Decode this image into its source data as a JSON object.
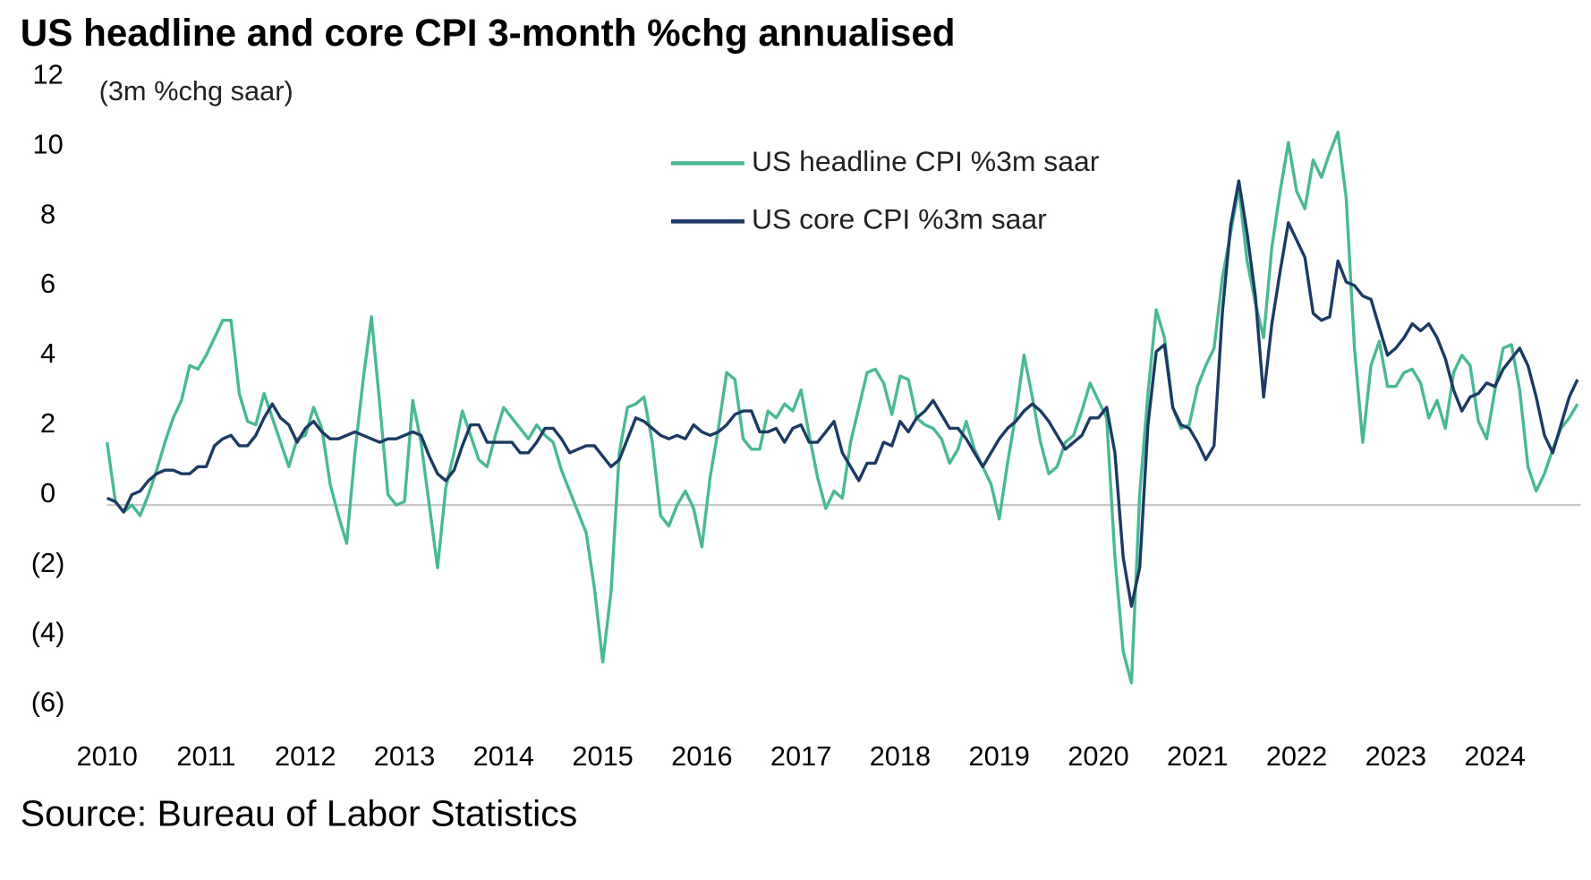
{
  "chart_data": {
    "type": "line",
    "title": "US headline and core CPI 3-month %chg annualised",
    "y_label": "(3m %chg saar)",
    "source": "Source: Bureau of Labor Statistics",
    "categories": [
      "2010",
      null,
      null,
      null,
      null,
      null,
      null,
      null,
      null,
      null,
      null,
      null,
      "2011",
      null,
      null,
      null,
      null,
      null,
      null,
      null,
      null,
      null,
      null,
      null,
      "2012",
      null,
      null,
      null,
      null,
      null,
      null,
      null,
      null,
      null,
      null,
      null,
      "2013",
      null,
      null,
      null,
      null,
      null,
      null,
      null,
      null,
      null,
      null,
      null,
      "2014",
      null,
      null,
      null,
      null,
      null,
      null,
      null,
      null,
      null,
      null,
      null,
      "2015",
      null,
      null,
      null,
      null,
      null,
      null,
      null,
      null,
      null,
      null,
      null,
      "2016",
      null,
      null,
      null,
      null,
      null,
      null,
      null,
      null,
      null,
      null,
      null,
      "2017",
      null,
      null,
      null,
      null,
      null,
      null,
      null,
      null,
      null,
      null,
      null,
      "2018",
      null,
      null,
      null,
      null,
      null,
      null,
      null,
      null,
      null,
      null,
      null,
      "2019",
      null,
      null,
      null,
      null,
      null,
      null,
      null,
      null,
      null,
      null,
      null,
      "2020",
      null,
      null,
      null,
      null,
      null,
      null,
      null,
      null,
      null,
      null,
      null,
      "2021",
      null,
      null,
      null,
      null,
      null,
      null,
      null,
      null,
      null,
      null,
      null,
      "2022",
      null,
      null,
      null,
      null,
      null,
      null,
      null,
      null,
      null,
      null,
      null,
      "2023",
      null,
      null,
      null,
      null,
      null,
      null,
      null,
      null,
      null,
      null,
      null,
      "2024",
      null,
      null,
      null,
      null,
      null,
      null,
      null,
      null,
      null,
      null
    ],
    "series": [
      {
        "name": "US headline CPI %3m saar",
        "color": "#4bb895",
        "values": [
          1.8,
          0.1,
          -0.2,
          0.0,
          -0.3,
          0.3,
          1.0,
          1.8,
          2.5,
          3.0,
          4.0,
          3.9,
          4.3,
          4.8,
          5.3,
          5.3,
          3.2,
          2.4,
          2.3,
          3.2,
          2.5,
          1.8,
          1.1,
          1.9,
          2.0,
          2.8,
          2.2,
          0.6,
          -0.3,
          -1.1,
          1.5,
          3.6,
          5.4,
          2.9,
          0.3,
          0.0,
          0.1,
          3.0,
          1.8,
          0.0,
          -1.8,
          0.5,
          1.5,
          2.7,
          2.0,
          1.3,
          1.1,
          2.0,
          2.8,
          2.5,
          2.2,
          1.9,
          2.3,
          2.0,
          1.8,
          1.0,
          0.4,
          -0.2,
          -0.8,
          -2.4,
          -4.5,
          -2.5,
          1.5,
          2.8,
          2.9,
          3.1,
          1.8,
          -0.3,
          -0.6,
          0.0,
          0.4,
          -0.1,
          -1.2,
          0.8,
          2.2,
          3.8,
          3.6,
          1.9,
          1.6,
          1.6,
          2.7,
          2.5,
          2.9,
          2.7,
          3.3,
          2.0,
          0.8,
          -0.1,
          0.4,
          0.2,
          1.8,
          2.8,
          3.8,
          3.9,
          3.5,
          2.6,
          3.7,
          3.6,
          2.5,
          2.3,
          2.2,
          1.9,
          1.2,
          1.6,
          2.4,
          1.6,
          1.1,
          0.6,
          -0.4,
          1.2,
          2.6,
          4.3,
          3.1,
          1.8,
          0.9,
          1.1,
          1.8,
          2.0,
          2.7,
          3.5,
          3.0,
          2.5,
          -1.5,
          -4.2,
          -5.1,
          0.3,
          3.2,
          5.6,
          4.8,
          2.8,
          2.2,
          2.3,
          3.4,
          4.0,
          4.5,
          6.5,
          7.8,
          9.1,
          7.0,
          5.8,
          4.8,
          7.4,
          9.0,
          10.4,
          9.0,
          8.5,
          9.9,
          9.4,
          10.1,
          10.7,
          8.8,
          4.5,
          1.8,
          4.0,
          4.7,
          3.4,
          3.4,
          3.8,
          3.9,
          3.5,
          2.5,
          3.0,
          2.2,
          3.8,
          4.3,
          4.0,
          2.4,
          1.9,
          3.3,
          4.5,
          4.6,
          3.3,
          1.1,
          0.4,
          0.9,
          1.6,
          2.2,
          2.5,
          2.9
        ]
      },
      {
        "name": "US core CPI %3m saar",
        "color": "#1b3a64",
        "values": [
          0.2,
          0.1,
          -0.2,
          0.3,
          0.4,
          0.7,
          0.9,
          1.0,
          1.0,
          0.9,
          0.9,
          1.1,
          1.1,
          1.7,
          1.9,
          2.0,
          1.7,
          1.7,
          2.0,
          2.5,
          2.9,
          2.5,
          2.3,
          1.8,
          2.2,
          2.4,
          2.1,
          1.9,
          1.9,
          2.0,
          2.1,
          2.0,
          1.9,
          1.8,
          1.9,
          1.9,
          2.0,
          2.1,
          2.0,
          1.4,
          0.9,
          0.7,
          1.0,
          1.7,
          2.3,
          2.3,
          1.8,
          1.8,
          1.8,
          1.8,
          1.5,
          1.5,
          1.8,
          2.2,
          2.2,
          1.9,
          1.5,
          1.6,
          1.7,
          1.7,
          1.4,
          1.1,
          1.3,
          1.9,
          2.5,
          2.4,
          2.2,
          2.0,
          1.9,
          2.0,
          1.9,
          2.3,
          2.1,
          2.0,
          2.1,
          2.3,
          2.6,
          2.7,
          2.7,
          2.1,
          2.1,
          2.2,
          1.8,
          2.2,
          2.3,
          1.8,
          1.8,
          2.1,
          2.4,
          1.5,
          1.1,
          0.7,
          1.2,
          1.2,
          1.8,
          1.7,
          2.4,
          2.1,
          2.5,
          2.7,
          3.0,
          2.6,
          2.2,
          2.2,
          1.9,
          1.5,
          1.1,
          1.5,
          1.9,
          2.2,
          2.4,
          2.7,
          2.9,
          2.7,
          2.4,
          2.0,
          1.6,
          1.8,
          2.0,
          2.5,
          2.5,
          2.8,
          1.5,
          -1.5,
          -2.9,
          -1.8,
          2.3,
          4.4,
          4.6,
          2.8,
          2.3,
          2.2,
          1.8,
          1.3,
          1.7,
          5.5,
          8.0,
          9.3,
          7.8,
          6.0,
          3.1,
          5.2,
          6.7,
          8.1,
          7.6,
          7.1,
          5.5,
          5.3,
          5.4,
          7.0,
          6.4,
          6.3,
          6.0,
          5.9,
          5.1,
          4.3,
          4.5,
          4.8,
          5.2,
          5.0,
          5.2,
          4.8,
          4.2,
          3.3,
          2.7,
          3.1,
          3.2,
          3.5,
          3.4,
          3.9,
          4.2,
          4.5,
          4.0,
          3.1,
          2.0,
          1.5,
          2.3,
          3.1,
          3.6
        ]
      }
    ],
    "ylim": [
      -6,
      12
    ],
    "yticks": [
      {
        "value": -6,
        "label": "(6)"
      },
      {
        "value": -4,
        "label": "(4)"
      },
      {
        "value": -2,
        "label": "(2)"
      },
      0,
      2,
      4,
      6,
      8,
      10,
      12
    ],
    "grid": false
  }
}
